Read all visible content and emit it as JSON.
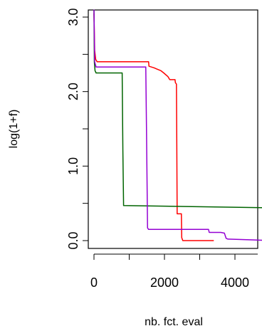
{
  "chart_data": {
    "type": "line",
    "title": "",
    "xlabel": "nb. fct. eval",
    "ylabel": "log(1+f)",
    "xlim": [
      -200,
      5000
    ],
    "ylim": [
      0,
      3.1
    ],
    "x_ticks": [
      0,
      2000,
      4000
    ],
    "x_tick_labels": [
      "0",
      "2000",
      "4000"
    ],
    "y_ticks": [
      0.0,
      0.5,
      1.0,
      1.5,
      2.0,
      2.5,
      3.0
    ],
    "y_tick_labels": [
      "0.0",
      "",
      "1.0",
      "",
      "2.0",
      "",
      "3.0"
    ],
    "grid": false,
    "legend": "none",
    "series": [
      {
        "color": "#ff0000",
        "points": [
          [
            0,
            3.05
          ],
          [
            20,
            2.55
          ],
          [
            50,
            2.43
          ],
          [
            90,
            2.4
          ],
          [
            1550,
            2.4
          ],
          [
            1560,
            2.34
          ],
          [
            1700,
            2.32
          ],
          [
            1800,
            2.3
          ],
          [
            1900,
            2.28
          ],
          [
            1980,
            2.25
          ],
          [
            2100,
            2.2
          ],
          [
            2150,
            2.16
          ],
          [
            2300,
            2.16
          ],
          [
            2310,
            2.12
          ],
          [
            2340,
            2.1
          ],
          [
            2350,
            1.3
          ],
          [
            2360,
            0.36
          ],
          [
            2480,
            0.36
          ],
          [
            2490,
            0.04
          ],
          [
            2520,
            0.0
          ],
          [
            3400,
            0.0
          ]
        ]
      },
      {
        "color": "#006400",
        "points": [
          [
            0,
            3.1
          ],
          [
            10,
            2.4
          ],
          [
            30,
            2.28
          ],
          [
            60,
            2.25
          ],
          [
            800,
            2.25
          ],
          [
            820,
            1.2
          ],
          [
            840,
            0.47
          ],
          [
            5000,
            0.44
          ]
        ]
      },
      {
        "color": "#9400d3",
        "points": [
          [
            0,
            3.1
          ],
          [
            20,
            2.4
          ],
          [
            60,
            2.33
          ],
          [
            1470,
            2.33
          ],
          [
            1490,
            1.5
          ],
          [
            1520,
            0.17
          ],
          [
            1550,
            0.15
          ],
          [
            3250,
            0.15
          ],
          [
            3270,
            0.11
          ],
          [
            3600,
            0.11
          ],
          [
            3700,
            0.1
          ],
          [
            3750,
            0.03
          ],
          [
            3800,
            0.02
          ],
          [
            4500,
            0.01
          ],
          [
            5000,
            0.0
          ]
        ]
      }
    ]
  }
}
